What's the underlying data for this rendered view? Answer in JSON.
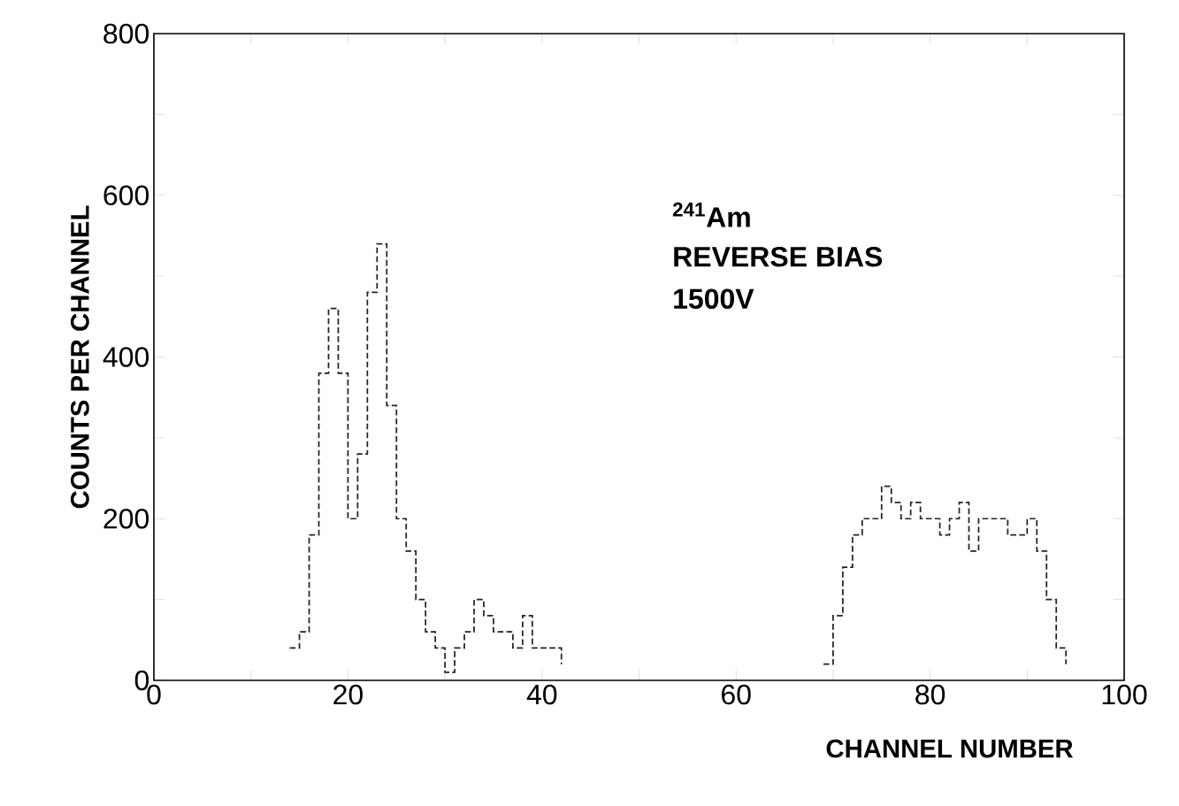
{
  "chart_data": {
    "type": "step",
    "xlabel": "CHANNEL NUMBER",
    "ylabel": "COUNTS PER CHANNEL",
    "annotations": [
      "$^{241}$Am",
      "REVERSE BIAS",
      "1500V"
    ],
    "series": [
      {
        "color": "#222222",
        "x": [
          14,
          15,
          16,
          17,
          18,
          19,
          20,
          21,
          22,
          23,
          24,
          25,
          26,
          27,
          28,
          29,
          30,
          31,
          32,
          33,
          34,
          35,
          36,
          37,
          38,
          39,
          40,
          41,
          42
        ],
        "values": [
          40,
          60,
          180,
          380,
          460,
          380,
          200,
          280,
          480,
          540,
          340,
          200,
          160,
          100,
          60,
          40,
          10,
          40,
          60,
          100,
          80,
          60,
          60,
          40,
          80,
          40,
          40,
          40,
          20
        ]
      },
      {
        "color": "#222222",
        "x": [
          69,
          70,
          71,
          72,
          73,
          74,
          75,
          76,
          77,
          78,
          79,
          80,
          81,
          82,
          83,
          84,
          85,
          86,
          87,
          88,
          89,
          90,
          91,
          92,
          93,
          94
        ],
        "values": [
          20,
          80,
          140,
          180,
          200,
          200,
          240,
          220,
          200,
          220,
          200,
          200,
          180,
          200,
          220,
          160,
          200,
          200,
          200,
          180,
          180,
          200,
          160,
          100,
          40,
          20
        ]
      }
    ],
    "line_style": "dashed",
    "marker": "none",
    "grid": false,
    "xlim": [
      0,
      100
    ],
    "xticks": [
      0,
      {
        "value": 10,
        "label": null
      },
      20,
      {
        "value": 30,
        "label": null
      },
      40,
      {
        "value": 50,
        "label": null
      },
      60,
      {
        "value": 70,
        "label": null
      },
      80,
      {
        "value": 90,
        "label": null
      },
      100
    ],
    "ylim": [
      0,
      800
    ],
    "yticks": [
      0,
      {
        "value": 100,
        "label": null
      },
      200,
      {
        "value": 300,
        "label": null
      },
      400,
      {
        "value": 500,
        "label": null
      },
      600,
      {
        "value": 700,
        "label": null
      },
      800
    ]
  }
}
